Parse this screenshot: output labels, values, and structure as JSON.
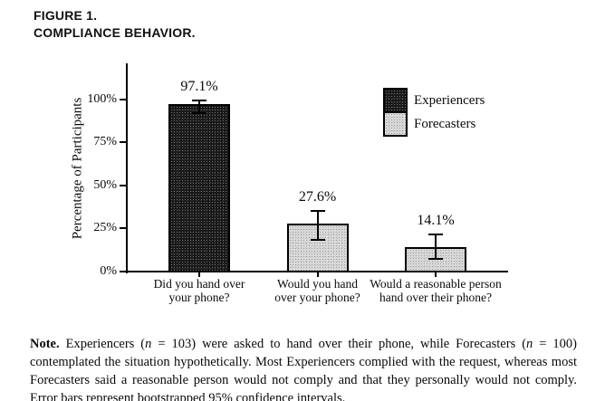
{
  "figure": {
    "label": "FIGURE 1.",
    "title": "COMPLIANCE BEHAVIOR."
  },
  "chart_data": {
    "type": "bar",
    "title": "",
    "xlabel": "",
    "ylabel": "Percentage of Participants",
    "ylim": [
      0,
      100
    ],
    "ytick_values": [
      0,
      25,
      50,
      75,
      100
    ],
    "ytick_labels": [
      "0%",
      "25%",
      "50%",
      "75%",
      "100%"
    ],
    "grid": false,
    "categories": [
      "Did you hand over your phone?",
      "Would you hand over your phone?",
      "Would a reasonable person hand over their phone?"
    ],
    "categories_wrapped": [
      [
        "Did you hand over",
        "your phone?"
      ],
      [
        "Would you hand",
        "over your phone?"
      ],
      [
        "Would a reasonable person",
        "hand over their phone?"
      ]
    ],
    "series": [
      {
        "name": "Experiencers",
        "color": "#181818",
        "values": [
          97.1,
          null,
          null
        ]
      },
      {
        "name": "Forecasters",
        "color": "#d9d9d9",
        "values": [
          null,
          27.6,
          14.1
        ]
      }
    ],
    "bars": [
      {
        "category_index": 0,
        "group": "Experiencers",
        "value": 97.1,
        "label": "97.1%",
        "ci_low": 91.5,
        "ci_high": 99.8
      },
      {
        "category_index": 1,
        "group": "Forecasters",
        "value": 27.6,
        "label": "27.6%",
        "ci_low": 18.0,
        "ci_high": 35.5
      },
      {
        "category_index": 2,
        "group": "Forecasters",
        "value": 14.1,
        "label": "14.1%",
        "ci_low": 7.0,
        "ci_high": 22.0
      }
    ],
    "legend": {
      "position": "upper-right",
      "entries": [
        "Experiencers",
        "Forecasters"
      ]
    },
    "error_bars_meaning": "bootstrapped 95% confidence intervals"
  },
  "note": {
    "segments": [
      {
        "text": "Note.",
        "style": "bold"
      },
      {
        "text": " Experiencers (",
        "style": "normal"
      },
      {
        "text": "n",
        "style": "italic"
      },
      {
        "text": " = 103) were asked to hand over their phone, while Forecasters (",
        "style": "normal"
      },
      {
        "text": "n",
        "style": "italic"
      },
      {
        "text": " = 100) contemplated the situation hypothetically. Most Experiencers complied with the request, whereas most Forecasters said a reasonable person would not comply and that they personally would not comply. Error bars represent bootstrapped 95% confidence intervals.",
        "style": "normal"
      }
    ]
  }
}
